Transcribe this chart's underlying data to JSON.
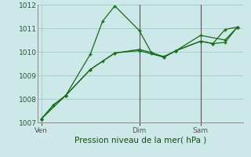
{
  "background_color": "#cce8e8",
  "grid_color": "#aacccc",
  "line_color": "#1a6b1a",
  "title": "Pression niveau de la mer( hPa )",
  "ylim": [
    1007,
    1012
  ],
  "yticks": [
    1007,
    1008,
    1009,
    1010,
    1011,
    1012
  ],
  "xtick_labels": [
    "Ven",
    "Dim",
    "Sam"
  ],
  "xtick_positions": [
    0,
    8,
    13
  ],
  "vlines": [
    8,
    13
  ],
  "xlim": [
    -0.3,
    16.5
  ],
  "series1_x": [
    0,
    1,
    2,
    4,
    5,
    6,
    8,
    9,
    10,
    11,
    13,
    14,
    15,
    16
  ],
  "series1_y": [
    1007.15,
    1007.75,
    1008.15,
    1009.9,
    1011.3,
    1011.95,
    1010.9,
    1009.95,
    1009.8,
    1010.05,
    1010.45,
    1010.35,
    1010.95,
    1011.05
  ],
  "series2_x": [
    0,
    1,
    2,
    4,
    5,
    6,
    8,
    9,
    10,
    11,
    13,
    14,
    15,
    16
  ],
  "series2_y": [
    1007.15,
    1007.75,
    1008.15,
    1009.25,
    1009.6,
    1009.95,
    1010.1,
    1009.97,
    1009.77,
    1010.05,
    1010.45,
    1010.35,
    1010.4,
    1011.05
  ],
  "series3_x": [
    0,
    2,
    4,
    6,
    8,
    10,
    11,
    13,
    15,
    16
  ],
  "series3_y": [
    1007.15,
    1008.15,
    1009.25,
    1009.95,
    1010.05,
    1009.77,
    1010.05,
    1010.7,
    1010.5,
    1011.05
  ]
}
